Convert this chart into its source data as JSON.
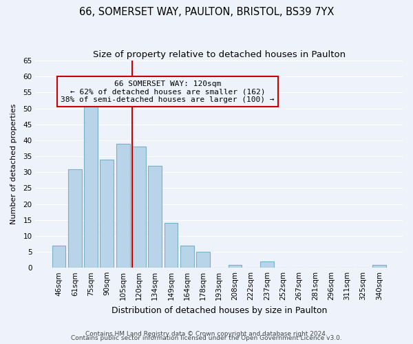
{
  "title": "66, SOMERSET WAY, PAULTON, BRISTOL, BS39 7YX",
  "subtitle": "Size of property relative to detached houses in Paulton",
  "xlabel": "Distribution of detached houses by size in Paulton",
  "ylabel": "Number of detached properties",
  "bar_labels": [
    "46sqm",
    "61sqm",
    "75sqm",
    "90sqm",
    "105sqm",
    "120sqm",
    "134sqm",
    "149sqm",
    "164sqm",
    "178sqm",
    "193sqm",
    "208sqm",
    "222sqm",
    "237sqm",
    "252sqm",
    "267sqm",
    "281sqm",
    "296sqm",
    "311sqm",
    "325sqm",
    "340sqm"
  ],
  "bar_values": [
    7,
    31,
    52,
    34,
    39,
    38,
    32,
    14,
    7,
    5,
    0,
    1,
    0,
    2,
    0,
    0,
    0,
    0,
    0,
    0,
    1
  ],
  "bar_color": "#b8d4e8",
  "bar_edge_color": "#7aafc8",
  "vline_color": "#cc0000",
  "annotation_title": "66 SOMERSET WAY: 120sqm",
  "annotation_line1": "← 62% of detached houses are smaller (162)",
  "annotation_line2": "38% of semi-detached houses are larger (100) →",
  "annotation_box_edge": "#cc0000",
  "ylim": [
    0,
    65
  ],
  "yticks": [
    0,
    5,
    10,
    15,
    20,
    25,
    30,
    35,
    40,
    45,
    50,
    55,
    60,
    65
  ],
  "footer1": "Contains HM Land Registry data © Crown copyright and database right 2024.",
  "footer2": "Contains public sector information licensed under the Open Government Licence v3.0.",
  "bg_color": "#eef2fa",
  "grid_color": "#ffffff",
  "title_fontsize": 10.5,
  "subtitle_fontsize": 9.5,
  "xlabel_fontsize": 9,
  "ylabel_fontsize": 8,
  "tick_fontsize": 7.5,
  "footer_fontsize": 6.5,
  "ann_fontsize": 8
}
